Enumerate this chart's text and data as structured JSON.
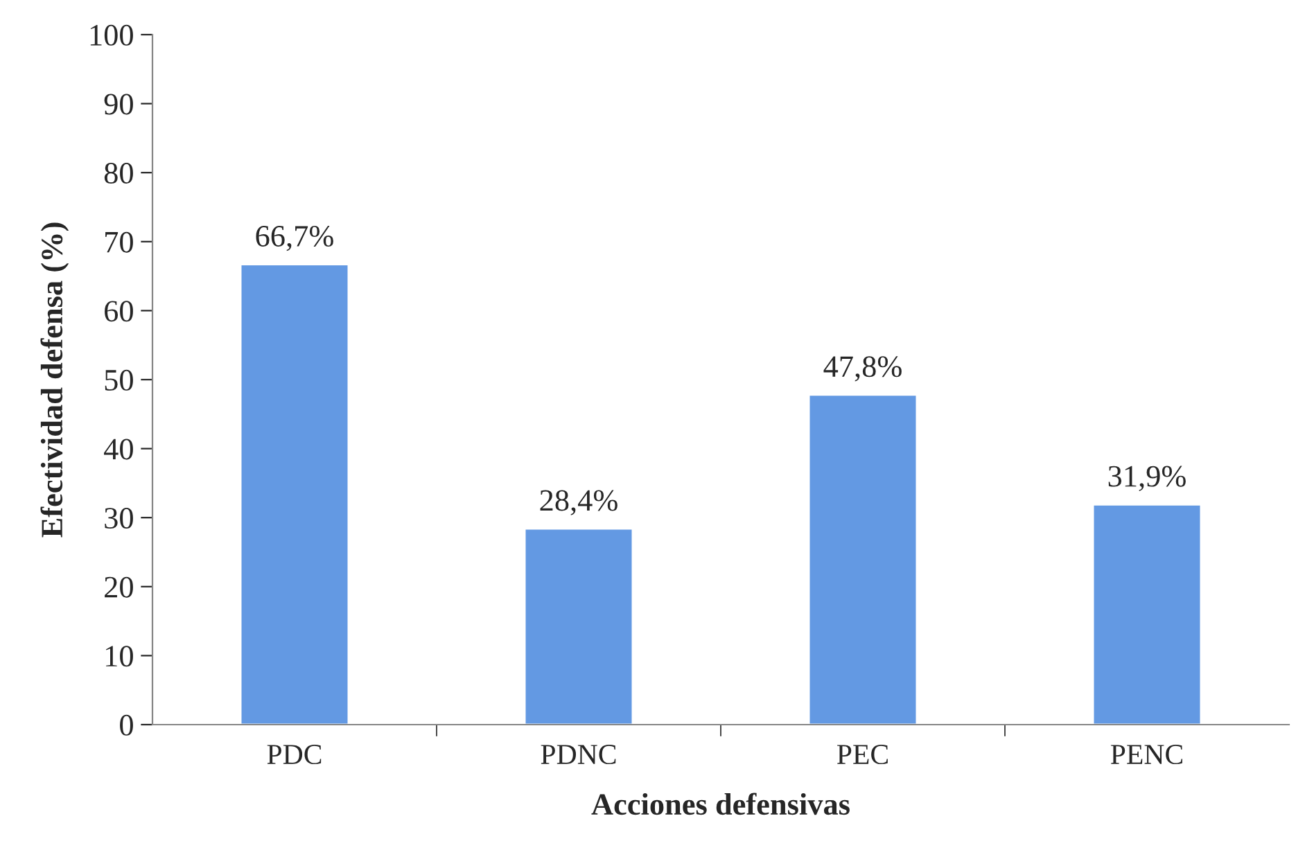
{
  "chart_data": {
    "type": "bar",
    "xlabel": "Acciones defensivas",
    "ylabel": "Efectividad defensa (%)",
    "categories": [
      "PDC",
      "PDNC",
      "PEC",
      "PENC"
    ],
    "values": [
      66.7,
      28.4,
      47.8,
      31.9
    ],
    "value_labels": [
      "66,7%",
      "28,4%",
      "47,8%",
      "31,9%"
    ],
    "color": "#6399e3",
    "ylim": [
      0,
      100
    ],
    "yticks": [
      0,
      10,
      20,
      30,
      40,
      50,
      60,
      70,
      80,
      90,
      100
    ],
    "grid": false,
    "legend": false
  }
}
